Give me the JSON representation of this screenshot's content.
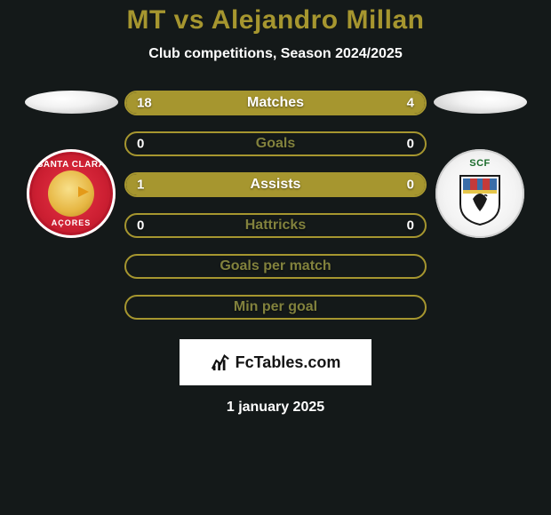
{
  "title": {
    "text": "MT vs Alejandro Millan",
    "fontsize": 30,
    "color": "#a6962f"
  },
  "subtitle": {
    "text": "Club competitions, Season 2024/2025",
    "fontsize": 16,
    "color": "#ffffff"
  },
  "accent_color": "#a6962f",
  "dim_color": "#82823d",
  "text_color": "#ffffff",
  "brand": {
    "text": "FcTables.com"
  },
  "date": {
    "text": "1 january 2025",
    "fontsize": 16
  },
  "left_crest": {
    "top_label": "SANTA CLARA",
    "bottom_label": "AÇORES"
  },
  "right_crest": {
    "label": "SCF"
  },
  "rows": [
    {
      "id": "matches",
      "label": "Matches",
      "left": "18",
      "right": "4",
      "left_pct": 81.8,
      "right_pct": 18.2,
      "show_vals": true
    },
    {
      "id": "goals",
      "label": "Goals",
      "left": "0",
      "right": "0",
      "left_pct": 0,
      "right_pct": 0,
      "show_vals": true
    },
    {
      "id": "assists",
      "label": "Assists",
      "left": "1",
      "right": "0",
      "left_pct": 100,
      "right_pct": 0,
      "show_vals": true
    },
    {
      "id": "hattricks",
      "label": "Hattricks",
      "left": "0",
      "right": "0",
      "left_pct": 0,
      "right_pct": 0,
      "show_vals": true
    },
    {
      "id": "gpm",
      "label": "Goals per match",
      "left": "",
      "right": "",
      "left_pct": 0,
      "right_pct": 0,
      "show_vals": false
    },
    {
      "id": "mpg",
      "label": "Min per goal",
      "left": "",
      "right": "",
      "left_pct": 0,
      "right_pct": 0,
      "show_vals": false
    }
  ],
  "row_style": {
    "label_fontsize": 16,
    "value_fontsize": 15,
    "height": 28
  }
}
